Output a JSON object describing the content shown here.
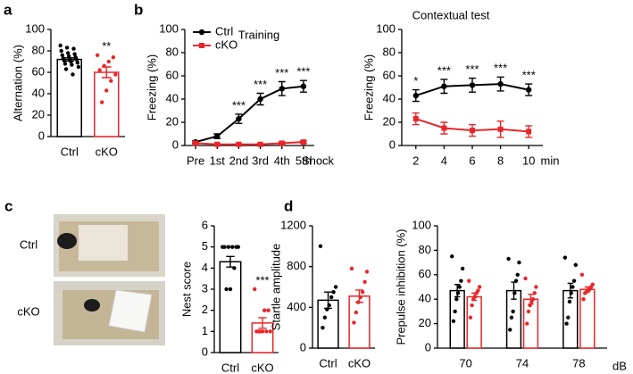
{
  "photos": {
    "labels": [
      "Ctrl",
      "cKO"
    ]
  },
  "chart_data": [
    {
      "type": "bar",
      "panel": "a",
      "y_label": "Alternation (%)",
      "ylim": [
        0,
        100
      ],
      "yticks": [
        0,
        20,
        40,
        60,
        80,
        100
      ],
      "categories": [
        "Ctrl",
        "cKO"
      ],
      "values": [
        72,
        60
      ],
      "errors": [
        1.5,
        5
      ],
      "colors": [
        "#000000",
        "#e8262a"
      ],
      "points": [
        [
          85,
          83,
          82,
          80,
          78,
          77,
          76,
          75,
          74,
          73,
          72,
          72,
          71,
          70,
          69,
          68,
          67,
          65,
          63,
          58
        ],
        [
          76,
          74,
          70,
          66,
          62,
          58,
          52,
          43,
          32
        ]
      ],
      "significance": [
        null,
        "**"
      ]
    },
    {
      "type": "line",
      "panel": "b",
      "title": "Training",
      "y_label": "Freezing (%)",
      "x_label": "Shock",
      "ylim": [
        0,
        100
      ],
      "yticks": [
        0,
        20,
        40,
        60,
        80,
        100
      ],
      "categories": [
        "Pre",
        "1st",
        "2nd",
        "3rd",
        "4th",
        "5th"
      ],
      "series": [
        {
          "name": "Ctrl",
          "color": "#000000",
          "marker": "circle",
          "values": [
            3,
            8,
            23,
            40,
            49,
            51
          ],
          "errors": [
            1,
            2,
            4,
            5,
            6,
            5
          ]
        },
        {
          "name": "cKO",
          "color": "#e8262a",
          "marker": "square",
          "values": [
            2,
            1,
            1,
            1,
            2,
            3
          ],
          "errors": [
            0.5,
            0.5,
            0.5,
            0.5,
            1,
            1
          ]
        }
      ],
      "significance": [
        null,
        null,
        "***",
        "***",
        "***",
        "***"
      ],
      "legend": "upper left"
    },
    {
      "type": "line",
      "title": "Contextual test",
      "y_label": "Freezing (%)",
      "x_label": "min",
      "ylim": [
        0,
        100
      ],
      "yticks": [
        0,
        20,
        40,
        60,
        80,
        100
      ],
      "x": [
        2,
        4,
        6,
        8,
        10
      ],
      "xlim": [
        1,
        11
      ],
      "xticks": [
        2,
        4,
        6,
        8,
        10
      ],
      "series": [
        {
          "color": "#000000",
          "marker": "circle",
          "values": [
            43,
            51,
            52,
            53,
            48
          ],
          "errors": [
            5,
            6,
            6,
            6,
            5
          ]
        },
        {
          "color": "#e8262a",
          "marker": "square",
          "values": [
            23,
            15,
            13,
            14,
            12
          ],
          "errors": [
            5,
            5,
            5,
            7,
            5
          ]
        }
      ],
      "significance": [
        "*",
        "***",
        "***",
        "***",
        "***"
      ]
    },
    {
      "type": "bar",
      "panel": "c",
      "y_label": "Nest score",
      "ylim": [
        0,
        6
      ],
      "yticks": [
        0,
        1,
        2,
        3,
        4,
        5,
        6
      ],
      "categories": [
        "Ctrl",
        "cKO"
      ],
      "values": [
        4.3,
        1.4
      ],
      "errors": [
        0.25,
        0.25
      ],
      "colors": [
        "#000000",
        "#e8262a"
      ],
      "points": [
        [
          5,
          5,
          5,
          5,
          5,
          5,
          4,
          3,
          3
        ],
        [
          3,
          2,
          2,
          1,
          1,
          1,
          1,
          1,
          1
        ]
      ],
      "significance": [
        null,
        "***"
      ]
    },
    {
      "type": "bar",
      "panel": "d",
      "y_label": "Startle amplitude",
      "ylim": [
        0,
        1200
      ],
      "yticks": [
        0,
        400,
        800,
        1200
      ],
      "categories": [
        "Ctrl",
        "cKO"
      ],
      "values": [
        470,
        510
      ],
      "errors": [
        80,
        60
      ],
      "colors": [
        "#000000",
        "#e8262a"
      ],
      "points": [
        [
          1000,
          600,
          550,
          500,
          420,
          380,
          300,
          200
        ],
        [
          780,
          750,
          650,
          550,
          500,
          450,
          350,
          250
        ]
      ]
    },
    {
      "type": "bar",
      "y_label": "Prepulse inhibition (%)",
      "x_label": "dB",
      "ylim": [
        0,
        100
      ],
      "yticks": [
        0,
        20,
        40,
        60,
        80,
        100
      ],
      "categories": [
        "70",
        "74",
        "78"
      ],
      "series": [
        {
          "color": "#000000",
          "values": [
            47,
            47,
            47
          ],
          "errors": [
            5,
            7,
            6
          ],
          "points": [
            [
              75,
              65,
              55,
              50,
              45,
              40,
              30,
              22
            ],
            [
              73,
              70,
              60,
              55,
              45,
              30,
              25,
              15
            ],
            [
              74,
              68,
              55,
              50,
              45,
              38,
              25,
              20
            ]
          ]
        },
        {
          "color": "#e8262a",
          "values": [
            42,
            40,
            48
          ],
          "errors": [
            3,
            4,
            2
          ],
          "points": [
            [
              55,
              50,
              47,
              45,
              42,
              40,
              35,
              25
            ],
            [
              57,
              50,
              45,
              40,
              38,
              35,
              30,
              20
            ],
            [
              60,
              52,
              50,
              48,
              47,
              46,
              45,
              40
            ]
          ]
        }
      ]
    }
  ]
}
